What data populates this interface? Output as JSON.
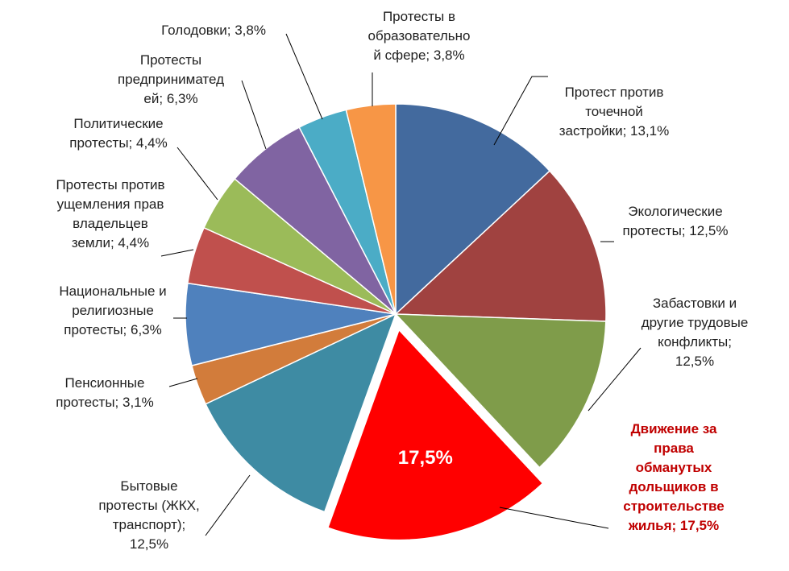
{
  "chart_data": {
    "type": "pie",
    "title": "",
    "slices": [
      {
        "label": "Протест против точечной застройки; 13,1%",
        "value": 13.1,
        "color": "#436a9e"
      },
      {
        "label": "Экологические протесты; 12,5%",
        "value": 12.5,
        "color": "#a04240"
      },
      {
        "label": "Забастовки и другие трудовые конфликты; 12,5%",
        "value": 12.5,
        "color": "#7f9c4a"
      },
      {
        "label": "Движение за права обманутых дольщиков в строительстве жилья; 17,5%",
        "value": 17.5,
        "color": "#ff0000",
        "exploded": true,
        "inner_label": "17,5%",
        "label_color": "#c00000"
      },
      {
        "label": "Бытовые протесты (ЖКХ, транспорт); 12,5%",
        "value": 12.5,
        "color": "#3e8ba3"
      },
      {
        "label": "Пенсионные протесты; 3,1%",
        "value": 3.1,
        "color": "#d27c3b"
      },
      {
        "label": "Национальные и религиозные протесты; 6,3%",
        "value": 6.3,
        "color": "#4f81bd"
      },
      {
        "label": "Протесты против ущемления прав владельцев земли; 4,4%",
        "value": 4.4,
        "color": "#c0504d"
      },
      {
        "label": "Политические протесты; 4,4%",
        "value": 4.4,
        "color": "#9bbb59"
      },
      {
        "label": "Протесты предпринимателей; 6,3%",
        "value": 6.3,
        "color": "#8064a2"
      },
      {
        "label": "Голодовки; 3,8%",
        "value": 3.8,
        "color": "#4bacc6"
      },
      {
        "label": "Протесты в образовательной сфере; 3,8%",
        "value": 3.8,
        "color": "#f79646"
      }
    ]
  },
  "labels": [
    {
      "lines": [
        "Протест против",
        "точечной",
        "застройки; 13,1%"
      ]
    },
    {
      "lines": [
        "Экологические",
        "протесты; 12,5%"
      ]
    },
    {
      "lines": [
        "Забастовки и",
        "другие трудовые",
        "конфликты;",
        "12,5%"
      ]
    },
    {
      "lines": [
        "Движение за",
        "права",
        "обманутых",
        "дольщиков в",
        "строительстве",
        "жилья; 17,5%"
      ]
    },
    {
      "lines": [
        "Бытовые",
        "протесты (ЖКХ,",
        "транспорт);",
        "12,5%"
      ]
    },
    {
      "lines": [
        "Пенсионные",
        "протесты; 3,1%"
      ]
    },
    {
      "lines": [
        "Национальные и",
        "религиозные",
        "протесты; 6,3%"
      ]
    },
    {
      "lines": [
        "Протесты против",
        "ущемления прав",
        "владельцев",
        "земли; 4,4%"
      ]
    },
    {
      "lines": [
        "Политические",
        "протесты; 4,4%"
      ]
    },
    {
      "lines": [
        "Протесты",
        "предприниматед",
        "ей; 6,3%"
      ]
    },
    {
      "lines": [
        "Голодовки; 3,8%"
      ]
    },
    {
      "lines": [
        "Протесты в",
        "образовательно",
        "й сфере; 3,8%"
      ]
    }
  ]
}
